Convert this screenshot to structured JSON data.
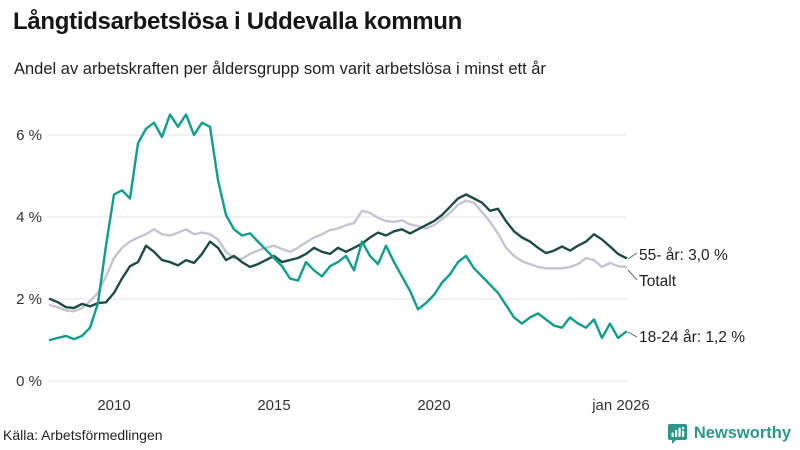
{
  "header": {
    "title": "Långtidsarbetslösa i Uddevalla kommun",
    "subtitle": "Andel av arbetskraften per åldersgrupp som varit arbetslösa i minst ett år"
  },
  "footer": {
    "source": "Källa: Arbetsförmedlingen",
    "brand": "Newsworthy"
  },
  "colors": {
    "teal": "#0f9d8c",
    "dark_green": "#1e4c43",
    "light_gray": "#c6c4d2",
    "gridline": "#e4e3e9",
    "brand_teal": "#2d968b"
  },
  "chart_data": {
    "type": "line",
    "title": "Långtidsarbetslösa i Uddevalla kommun",
    "subtitle": "Andel av arbetskraften per åldersgrupp som varit arbetslösa i minst ett år",
    "x_start_year": 2008,
    "x_end_year": 2026,
    "points_per_year": 4,
    "ylim": [
      0,
      6.9
    ],
    "grid": true,
    "legend_position": "right-end-labels",
    "yticks": [
      {
        "label": "6 %",
        "value": 6
      },
      {
        "label": "4 %",
        "value": 4
      },
      {
        "label": "2 %",
        "value": 2
      },
      {
        "label": "0 %",
        "value": 0
      }
    ],
    "xticks": [
      {
        "label": "2010",
        "year": 2010
      },
      {
        "label": "2015",
        "year": 2015
      },
      {
        "label": "2020",
        "year": 2020
      },
      {
        "label": "jan 2026",
        "year": 2026
      }
    ],
    "series": [
      {
        "id": "totalt",
        "name": "Totalt",
        "end_label": "Totalt",
        "color": "#c6c4d2",
        "values": [
          1.85,
          1.8,
          1.72,
          1.7,
          1.78,
          1.95,
          2.15,
          2.55,
          3.0,
          3.25,
          3.4,
          3.5,
          3.58,
          3.7,
          3.58,
          3.55,
          3.62,
          3.7,
          3.58,
          3.62,
          3.58,
          3.45,
          3.15,
          3.0,
          2.98,
          3.1,
          3.18,
          3.25,
          3.3,
          3.22,
          3.15,
          3.25,
          3.38,
          3.5,
          3.58,
          3.68,
          3.72,
          3.8,
          3.85,
          4.15,
          4.1,
          3.98,
          3.9,
          3.88,
          3.92,
          3.82,
          3.78,
          3.72,
          3.8,
          3.95,
          4.1,
          4.3,
          4.4,
          4.35,
          4.12,
          3.88,
          3.6,
          3.25,
          3.05,
          2.92,
          2.85,
          2.78,
          2.75,
          2.75,
          2.75,
          2.78,
          2.85,
          3.0,
          2.95,
          2.78,
          2.88,
          2.8,
          2.78
        ]
      },
      {
        "id": "55-ar",
        "name": "55- år",
        "end_label": "55- år: 3,0 %",
        "end_value": 3.0,
        "color": "#1e4c43",
        "values": [
          2.0,
          1.92,
          1.8,
          1.78,
          1.88,
          1.82,
          1.9,
          1.92,
          2.15,
          2.5,
          2.8,
          2.9,
          3.3,
          3.15,
          2.95,
          2.9,
          2.82,
          2.95,
          2.88,
          3.1,
          3.4,
          3.25,
          2.95,
          3.05,
          2.9,
          2.78,
          2.85,
          2.95,
          3.05,
          2.9,
          2.95,
          3.0,
          3.1,
          3.25,
          3.15,
          3.1,
          3.25,
          3.15,
          3.25,
          3.35,
          3.5,
          3.62,
          3.55,
          3.65,
          3.7,
          3.6,
          3.7,
          3.8,
          3.9,
          4.05,
          4.25,
          4.45,
          4.55,
          4.45,
          4.35,
          4.15,
          4.2,
          3.9,
          3.65,
          3.5,
          3.4,
          3.25,
          3.12,
          3.18,
          3.28,
          3.18,
          3.3,
          3.4,
          3.58,
          3.45,
          3.28,
          3.1,
          3.0
        ]
      },
      {
        "id": "18-24-ar",
        "name": "18-24 år",
        "end_label": "18-24 år: 1,2 %",
        "end_value": 1.2,
        "color": "#0f9d8c",
        "values": [
          1.0,
          1.05,
          1.1,
          1.02,
          1.1,
          1.3,
          1.9,
          3.3,
          4.55,
          4.65,
          4.45,
          5.8,
          6.15,
          6.3,
          5.95,
          6.5,
          6.2,
          6.5,
          6.0,
          6.3,
          6.2,
          4.9,
          4.05,
          3.7,
          3.55,
          3.6,
          3.4,
          3.2,
          3.0,
          2.8,
          2.5,
          2.45,
          2.9,
          2.7,
          2.55,
          2.8,
          2.9,
          3.05,
          2.7,
          3.4,
          3.05,
          2.85,
          3.3,
          2.9,
          2.55,
          2.2,
          1.75,
          1.9,
          2.1,
          2.4,
          2.6,
          2.9,
          3.05,
          2.75,
          2.55,
          2.35,
          2.15,
          1.85,
          1.55,
          1.4,
          1.55,
          1.65,
          1.5,
          1.35,
          1.3,
          1.55,
          1.4,
          1.3,
          1.5,
          1.05,
          1.4,
          1.05,
          1.2
        ]
      }
    ]
  }
}
